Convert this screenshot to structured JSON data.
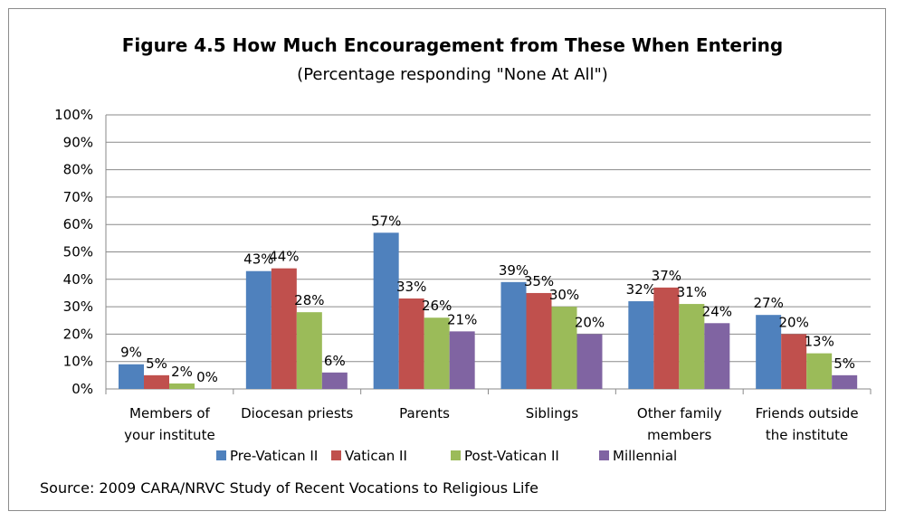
{
  "chart_data": {
    "type": "bar",
    "title": "Figure 4.5  How Much Encouragement from These When Entering",
    "subtitle": "(Percentage responding \"None At All\")",
    "source": "Source:  2009 CARA/NRVC Study of Recent Vocations to Religious Life",
    "ylim": [
      0,
      100
    ],
    "y_ticks": [
      "0%",
      "10%",
      "20%",
      "30%",
      "40%",
      "50%",
      "60%",
      "70%",
      "80%",
      "90%",
      "100%"
    ],
    "categories": [
      [
        "Members of",
        "your institute"
      ],
      [
        "Diocesan priests"
      ],
      [
        "Parents"
      ],
      [
        "Siblings"
      ],
      [
        "Other family",
        "members"
      ],
      [
        "Friends outside",
        "the institute"
      ]
    ],
    "series": [
      {
        "name": "Pre-Vatican II",
        "color": "#4f81bd",
        "values": [
          9,
          43,
          57,
          39,
          32,
          27
        ],
        "labels": [
          "9%",
          "43%",
          "57%",
          "39%",
          "32%",
          "27%"
        ]
      },
      {
        "name": "Vatican II",
        "color": "#c0504d",
        "values": [
          5,
          44,
          33,
          35,
          37,
          20
        ],
        "labels": [
          "5%",
          "44%",
          "33%",
          "35%",
          "37%",
          "20%"
        ]
      },
      {
        "name": "Post-Vatican II",
        "color": "#9bbb59",
        "values": [
          2,
          28,
          26,
          30,
          31,
          13
        ],
        "labels": [
          "2%",
          "28%",
          "26%",
          "30%",
          "31%",
          "13%"
        ]
      },
      {
        "name": "Millennial",
        "color": "#8064a2",
        "values": [
          0,
          6,
          21,
          20,
          24,
          5
        ],
        "labels": [
          "0%",
          "6%",
          "21%",
          "20%",
          "24%",
          "5%"
        ]
      }
    ],
    "legend_position": "bottom",
    "grid": true
  }
}
